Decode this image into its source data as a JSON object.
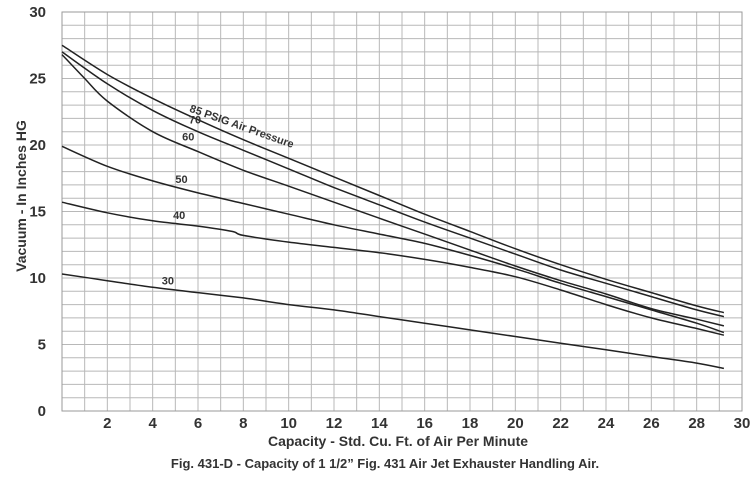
{
  "chart_data": {
    "type": "line",
    "xlabel": "Capacity - Std. Cu. Ft. of Air Per Minute",
    "ylabel": "Vacuum - In Inches HG",
    "caption": "Fig. 431-D - Capacity of 1 1/2” Fig. 431 Air Jet Exhauster Handling Air.",
    "xlim": [
      0,
      30
    ],
    "ylim": [
      0,
      30
    ],
    "x_ticks": [
      2,
      4,
      6,
      8,
      10,
      12,
      14,
      16,
      18,
      20,
      22,
      24,
      26,
      28,
      30
    ],
    "y_ticks": [
      0,
      5,
      10,
      15,
      20,
      25,
      30
    ],
    "grid": true,
    "series": [
      {
        "name": "85 PSIG Air Pressure",
        "x": [
          0,
          2,
          4,
          6,
          8,
          10,
          12,
          14,
          16,
          18,
          20,
          22,
          24,
          26,
          28,
          29.2
        ],
        "y": [
          27.5,
          25.3,
          23.5,
          21.9,
          20.4,
          19.0,
          17.6,
          16.2,
          14.8,
          13.5,
          12.2,
          11.0,
          9.9,
          8.9,
          7.9,
          7.4
        ]
      },
      {
        "name": "70",
        "x": [
          0,
          2,
          4,
          6,
          8,
          10,
          12,
          14,
          16,
          18,
          20,
          22,
          24,
          26,
          28,
          29.2
        ],
        "y": [
          27.0,
          24.6,
          22.6,
          21.0,
          19.6,
          18.2,
          16.8,
          15.5,
          14.2,
          13.0,
          11.8,
          10.6,
          9.6,
          8.6,
          7.6,
          7.1
        ]
      },
      {
        "name": "60",
        "x": [
          0,
          1,
          2,
          4,
          6,
          8,
          10,
          12,
          14,
          16,
          18,
          20,
          22,
          24,
          26,
          28,
          29.2
        ],
        "y": [
          26.8,
          25.0,
          23.3,
          21.0,
          19.5,
          18.1,
          16.9,
          15.7,
          14.5,
          13.3,
          12.1,
          10.9,
          9.8,
          8.8,
          7.7,
          6.9,
          6.4
        ]
      },
      {
        "name": "50",
        "x": [
          0,
          2,
          4,
          6,
          8,
          10,
          12,
          14,
          16,
          18,
          20,
          22,
          24,
          26,
          28,
          29.2
        ],
        "y": [
          19.9,
          18.4,
          17.3,
          16.4,
          15.6,
          14.8,
          14.0,
          13.3,
          12.6,
          11.7,
          10.7,
          9.6,
          8.6,
          7.6,
          6.6,
          5.9
        ]
      },
      {
        "name": "40",
        "x": [
          0,
          2,
          4,
          6,
          7.5,
          8,
          10,
          12,
          14,
          16,
          18,
          20,
          22,
          24,
          26,
          28,
          29.2
        ],
        "y": [
          15.7,
          14.9,
          14.3,
          13.9,
          13.5,
          13.2,
          12.7,
          12.3,
          11.9,
          11.4,
          10.8,
          10.1,
          9.1,
          8.0,
          7.0,
          6.2,
          5.7
        ]
      },
      {
        "name": "30",
        "x": [
          0,
          2,
          4,
          6,
          8,
          10,
          12,
          14,
          16,
          18,
          20,
          22,
          24,
          26,
          28,
          29.2
        ],
        "y": [
          10.3,
          9.8,
          9.3,
          8.9,
          8.5,
          8.0,
          7.6,
          7.1,
          6.6,
          6.1,
          5.6,
          5.1,
          4.6,
          4.1,
          3.6,
          3.2
        ]
      }
    ]
  }
}
